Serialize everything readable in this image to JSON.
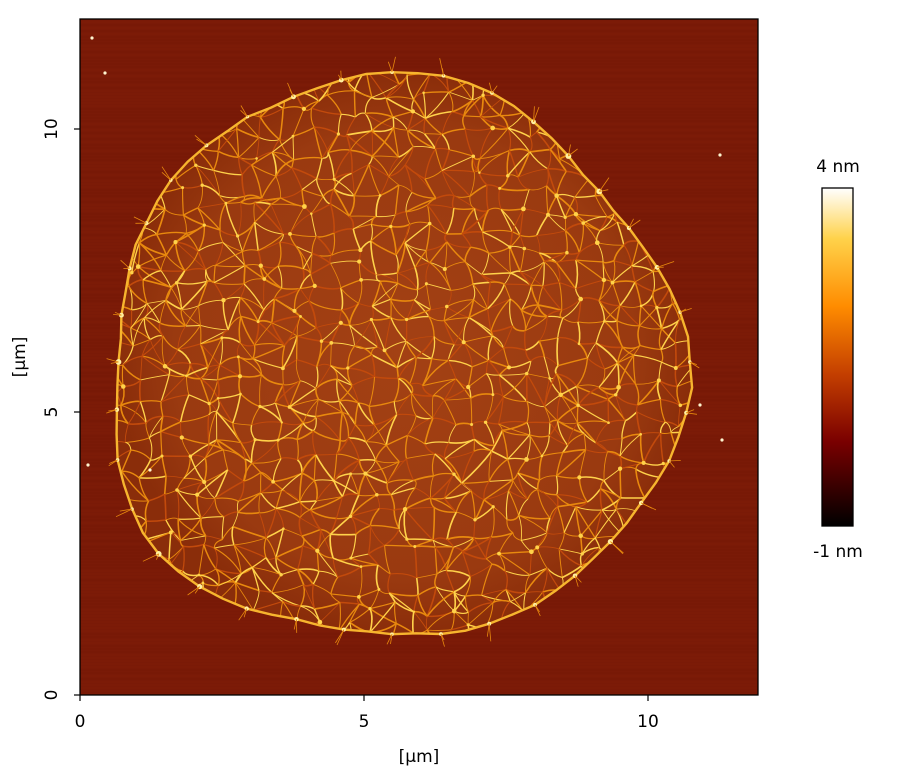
{
  "image": {
    "kind": "AFM height map",
    "subject": "circular network of fibrous strands on a flat substrate",
    "colormap": "afmhot",
    "colors": {
      "background_substrate": "#7a1a07",
      "strand_low": "#c24a0c",
      "strand_mid": "#e8890e",
      "strand_high": "#ffd24a",
      "nodes": "#fff0a0"
    }
  },
  "axes": {
    "x_label": "[µm]",
    "y_label": "[µm]",
    "x_range": [
      0,
      12
    ],
    "y_range": [
      0,
      12
    ],
    "x_ticks": [
      {
        "value": 0,
        "label": "0"
      },
      {
        "value": 5,
        "label": "5"
      },
      {
        "value": 10,
        "label": "10"
      }
    ],
    "y_ticks": [
      {
        "value": 0,
        "label": "0"
      },
      {
        "value": 5,
        "label": "5"
      },
      {
        "value": 10,
        "label": "10"
      }
    ]
  },
  "colorbar": {
    "max_label": "4 nm",
    "min_label": "-1 nm",
    "max_value_nm": 4,
    "min_value_nm": -1,
    "stops": [
      "#000000",
      "#7a0000",
      "#c43f00",
      "#ff8c00",
      "#ffd24a",
      "#ffffff"
    ]
  }
}
